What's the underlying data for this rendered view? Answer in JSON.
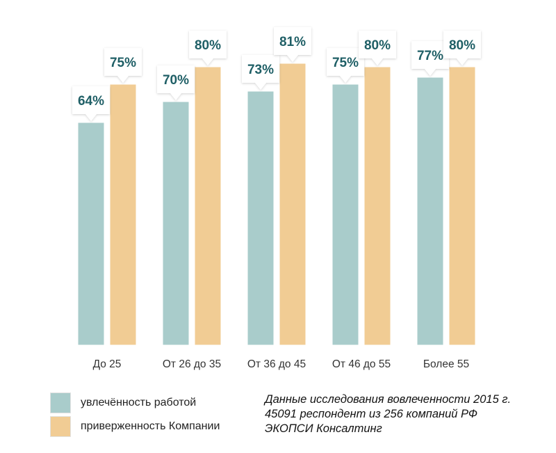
{
  "chart_data": {
    "type": "bar",
    "categories": [
      "До 25",
      "От 26 до 35",
      "От 36 до 45",
      "От 46 до 55",
      "Более 55"
    ],
    "series": [
      {
        "name": "увлечённость работой",
        "values": [
          64,
          70,
          73,
          75,
          77
        ],
        "color": "#a9cccb"
      },
      {
        "name": "приверженность Компании",
        "values": [
          75,
          80,
          81,
          80,
          80
        ],
        "color": "#f1cc94"
      }
    ],
    "value_suffix": "%",
    "ylim": [
      0,
      100
    ],
    "grid": false,
    "legend_position": "bottom-left",
    "label_color": "#1f5f66"
  },
  "note": {
    "lines": [
      "Данные исследования вовлеченности 2015 г.",
      "45091 респондент из 256 компаний РФ",
      "ЭКОПСИ Консалтинг"
    ]
  }
}
